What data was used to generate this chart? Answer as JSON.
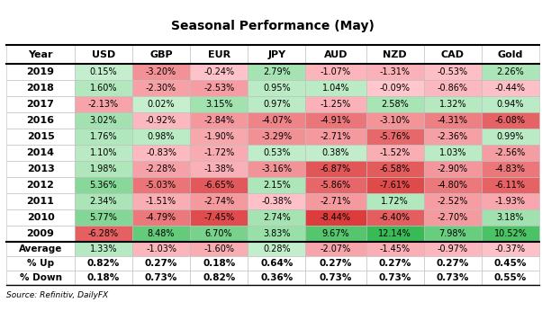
{
  "title": "Seasonal Performance (May)",
  "source_text": "Source: Refinitiv, DailyFX",
  "columns": [
    "Year",
    "USD",
    "GBP",
    "EUR",
    "JPY",
    "AUD",
    "NZD",
    "CAD",
    "Gold"
  ],
  "years": [
    "2019",
    "2018",
    "2017",
    "2016",
    "2015",
    "2014",
    "2013",
    "2012",
    "2011",
    "2010",
    "2009"
  ],
  "data": {
    "2019": [
      0.15,
      -3.2,
      -0.24,
      2.79,
      -1.07,
      -1.31,
      -0.53,
      2.26
    ],
    "2018": [
      1.6,
      -2.3,
      -2.53,
      0.95,
      1.04,
      -0.09,
      -0.86,
      -0.44
    ],
    "2017": [
      -2.13,
      0.02,
      3.15,
      0.97,
      -1.25,
      2.58,
      1.32,
      0.94
    ],
    "2016": [
      3.02,
      -0.92,
      -2.84,
      -4.07,
      -4.91,
      -3.1,
      -4.31,
      -6.08
    ],
    "2015": [
      1.76,
      0.98,
      -1.9,
      -3.29,
      -2.71,
      -5.76,
      -2.36,
      0.99
    ],
    "2014": [
      1.1,
      -0.83,
      -1.72,
      0.53,
      0.38,
      -1.52,
      1.03,
      -2.56
    ],
    "2013": [
      1.98,
      -2.28,
      -1.38,
      -3.16,
      -6.87,
      -6.58,
      -2.9,
      -4.83
    ],
    "2012": [
      5.36,
      -5.03,
      -6.65,
      2.15,
      -5.86,
      -7.61,
      -4.8,
      -6.11
    ],
    "2011": [
      2.34,
      -1.51,
      -2.74,
      -0.38,
      -2.71,
      1.72,
      -2.52,
      -1.93
    ],
    "2010": [
      5.77,
      -4.79,
      -7.45,
      2.74,
      -8.44,
      -6.4,
      -2.7,
      3.18
    ],
    "2009": [
      -6.28,
      8.48,
      6.7,
      3.83,
      9.67,
      12.14,
      7.98,
      10.52
    ]
  },
  "average": [
    1.33,
    -1.03,
    -1.6,
    0.28,
    -2.07,
    -1.45,
    -0.97,
    -0.37
  ],
  "pct_up": [
    "0.82%",
    "0.27%",
    "0.18%",
    "0.64%",
    "0.27%",
    "0.27%",
    "0.27%",
    "0.45%"
  ],
  "pct_down": [
    "0.18%",
    "0.73%",
    "0.82%",
    "0.36%",
    "0.73%",
    "0.73%",
    "0.73%",
    "0.55%"
  ],
  "title_fontsize": 10,
  "cell_fontsize": 7.0,
  "header_fontsize": 8.0,
  "year_fontsize": 8.0,
  "stats_fontsize": 7.5,
  "green_max": 12.14,
  "red_max": 8.44
}
